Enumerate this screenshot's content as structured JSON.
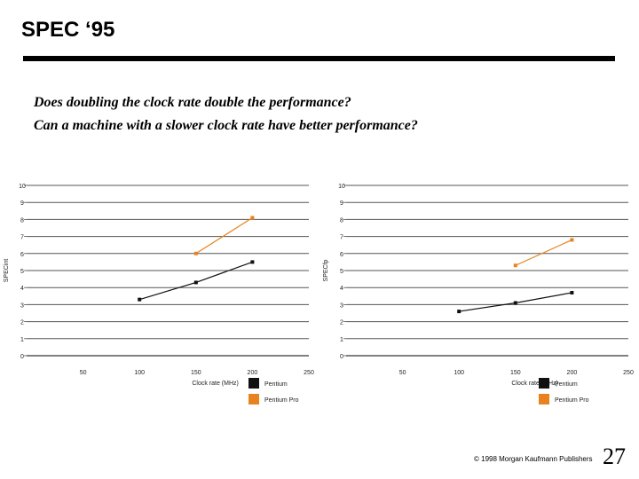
{
  "slide": {
    "title": "SPEC ‘95",
    "questions": [
      "Does doubling the clock rate double the performance?",
      "Can a machine with a slower clock rate have better performance?"
    ],
    "copyright": "© 1998 Morgan Kaufmann Publishers",
    "page_number": "27"
  },
  "colors": {
    "pentium": "#111111",
    "pentium_pro": "#e8821e",
    "gridline": "#555555",
    "axis": "#000000"
  },
  "chart_data": [
    {
      "type": "line",
      "title": "",
      "xlabel": "Clock rate (MHz)",
      "ylabel": "SPECint",
      "xlim": [
        0,
        250
      ],
      "ylim": [
        0,
        10
      ],
      "x_ticks": [
        50,
        100,
        150,
        200,
        250
      ],
      "y_ticks": [
        0,
        1,
        2,
        3,
        4,
        5,
        6,
        7,
        8,
        9,
        10
      ],
      "grid": true,
      "series": [
        {
          "name": "Pentium",
          "color": "#111111",
          "x": [
            100,
            150,
            200
          ],
          "values": [
            3.3,
            4.3,
            5.5
          ]
        },
        {
          "name": "Pentium Pro",
          "color": "#e8821e",
          "x": [
            150,
            200
          ],
          "values": [
            6.0,
            8.1
          ]
        }
      ]
    },
    {
      "type": "line",
      "title": "",
      "xlabel": "Clock rate (MHz)",
      "ylabel": "SPECfp",
      "xlim": [
        0,
        250
      ],
      "ylim": [
        0,
        10
      ],
      "x_ticks": [
        50,
        100,
        150,
        200,
        250
      ],
      "y_ticks": [
        0,
        1,
        2,
        3,
        4,
        5,
        6,
        7,
        8,
        9,
        10
      ],
      "grid": true,
      "series": [
        {
          "name": "Pentium",
          "color": "#111111",
          "x": [
            100,
            150,
            200
          ],
          "values": [
            2.6,
            3.1,
            3.7
          ]
        },
        {
          "name": "Pentium Pro",
          "color": "#e8821e",
          "x": [
            150,
            200
          ],
          "values": [
            5.3,
            6.8
          ]
        }
      ]
    }
  ]
}
